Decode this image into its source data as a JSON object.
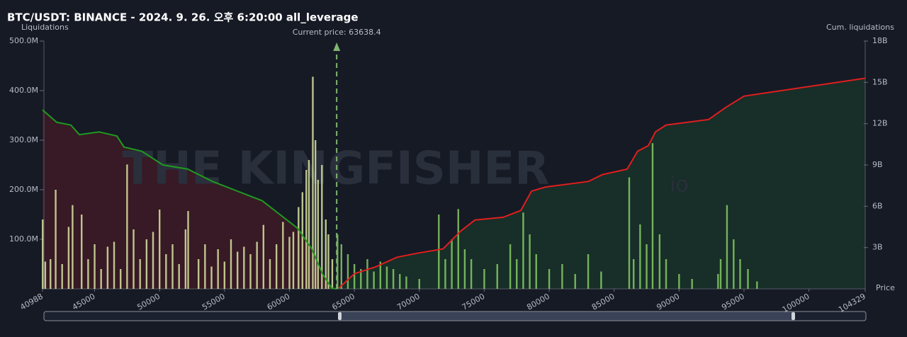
{
  "chart_data": {
    "type": "bar",
    "title": "BTC/USDT: BINANCE - 2024. 9. 26. 오후 6:20:00 all_leverage",
    "left_axis_label": "Liquidations",
    "right_axis_label": "Cum. liquidations",
    "x_axis_label": "Price",
    "current_price": {
      "value": 63638.4,
      "label": "Current price: 63638.4"
    },
    "watermark": "THE KINGFISHER",
    "watermark_suffix": "io",
    "xlim": [
      40988,
      104329
    ],
    "xticks": [
      40988,
      45000,
      50000,
      55000,
      60000,
      65000,
      70000,
      75000,
      80000,
      85000,
      90000,
      95000,
      100000,
      104329
    ],
    "ylim": [
      0,
      500
    ],
    "yticks": [
      {
        "value": 100,
        "label": "100.0M"
      },
      {
        "value": 200,
        "label": "200.0M"
      },
      {
        "value": 300,
        "label": "300.0M"
      },
      {
        "value": 400,
        "label": "400.0M"
      },
      {
        "value": 500,
        "label": "500.0M"
      }
    ],
    "y2lim": [
      0,
      18
    ],
    "y2ticks": [
      {
        "value": 3,
        "label": "3B"
      },
      {
        "value": 6,
        "label": "6B"
      },
      {
        "value": 9,
        "label": "9B"
      },
      {
        "value": 12,
        "label": "12B"
      },
      {
        "value": 15,
        "label": "15B"
      },
      {
        "value": 18,
        "label": "18B"
      }
    ],
    "series": [
      {
        "type": "bar",
        "color": "#d8e3a0",
        "x": [
          41000,
          41200,
          41600,
          42000,
          42500,
          43000,
          43300,
          44000,
          44500,
          45000,
          45500,
          46000,
          46500,
          47000,
          47500,
          48000,
          48500,
          49000,
          49500,
          50000,
          50500,
          51000,
          51500,
          52000,
          52200,
          53000,
          53500,
          54000,
          54500,
          55000,
          55500,
          56000,
          56500,
          57000,
          57500,
          58000,
          58500,
          59000,
          59500,
          60000,
          60300,
          60700,
          61000,
          61300,
          61500,
          61800,
          62000,
          62200,
          62500,
          62800,
          63000,
          63300
        ],
        "values": [
          140,
          55,
          60,
          200,
          50,
          125,
          169,
          150,
          60,
          90,
          40,
          85,
          95,
          40,
          251,
          120,
          60,
          100,
          115,
          160,
          70,
          90,
          50,
          120,
          157,
          60,
          90,
          45,
          80,
          55,
          100,
          75,
          85,
          70,
          95,
          129,
          60,
          90,
          135,
          105,
          115,
          165,
          195,
          240,
          260,
          428,
          300,
          220,
          250,
          140,
          110,
          60
        ]
      },
      {
        "type": "bar",
        "color": "#86c965",
        "x": [
          63700,
          64000,
          64500,
          65000,
          65500,
          66000,
          66500,
          67000,
          67500,
          68000,
          68500,
          69000,
          70000,
          71500,
          72000,
          72500,
          73000,
          73500,
          74000,
          75000,
          76000,
          77000,
          77500,
          78000,
          78500,
          79000,
          80000,
          81000,
          82000,
          83000,
          84000,
          86160,
          86500,
          87000,
          87500,
          87960,
          88500,
          89000,
          90000,
          91000,
          93000,
          93200,
          93688,
          94200,
          94700,
          95300,
          96000
        ],
        "values": [
          110,
          90,
          70,
          50,
          40,
          60,
          35,
          55,
          45,
          40,
          30,
          25,
          20,
          150,
          60,
          100,
          161,
          80,
          60,
          40,
          50,
          90,
          60,
          154,
          110,
          70,
          40,
          50,
          30,
          70,
          35,
          225,
          60,
          130,
          90,
          294,
          110,
          60,
          30,
          20,
          30,
          60,
          169,
          100,
          60,
          40,
          15
        ]
      },
      {
        "type": "line",
        "axis": "y2",
        "color": "#1f9a1f",
        "fill": "rgba(110,25,40,0.38)",
        "x": [
          40988,
          42080,
          43170,
          43825,
          45350,
          46715,
          47260,
          48625,
          50260,
          52170,
          54080,
          55720,
          57900,
          59540,
          60630,
          61720,
          62540,
          63250,
          63638
        ],
        "values": [
          13.0,
          12.1,
          11.9,
          11.2,
          11.4,
          11.1,
          10.3,
          10.0,
          9.0,
          8.7,
          7.8,
          7.2,
          6.4,
          5.2,
          4.4,
          2.9,
          1.1,
          0.05,
          0
        ]
      },
      {
        "type": "line",
        "axis": "y2",
        "color": "#e01e1e",
        "fill": "rgba(30,85,45,0.35)",
        "x": [
          63800,
          65000,
          66640,
          68280,
          69910,
          71820,
          73190,
          74280,
          76460,
          77820,
          78640,
          79730,
          83010,
          84100,
          86000,
          86810,
          87630,
          88180,
          89000,
          92270,
          93630,
          95000,
          104329
        ],
        "values": [
          0.05,
          1.1,
          1.6,
          2.3,
          2.6,
          2.9,
          4.2,
          5.0,
          5.2,
          5.7,
          7.1,
          7.4,
          7.8,
          8.3,
          8.7,
          10.0,
          10.4,
          11.4,
          11.9,
          12.3,
          13.2,
          14.0,
          15.3
        ]
      }
    ]
  }
}
